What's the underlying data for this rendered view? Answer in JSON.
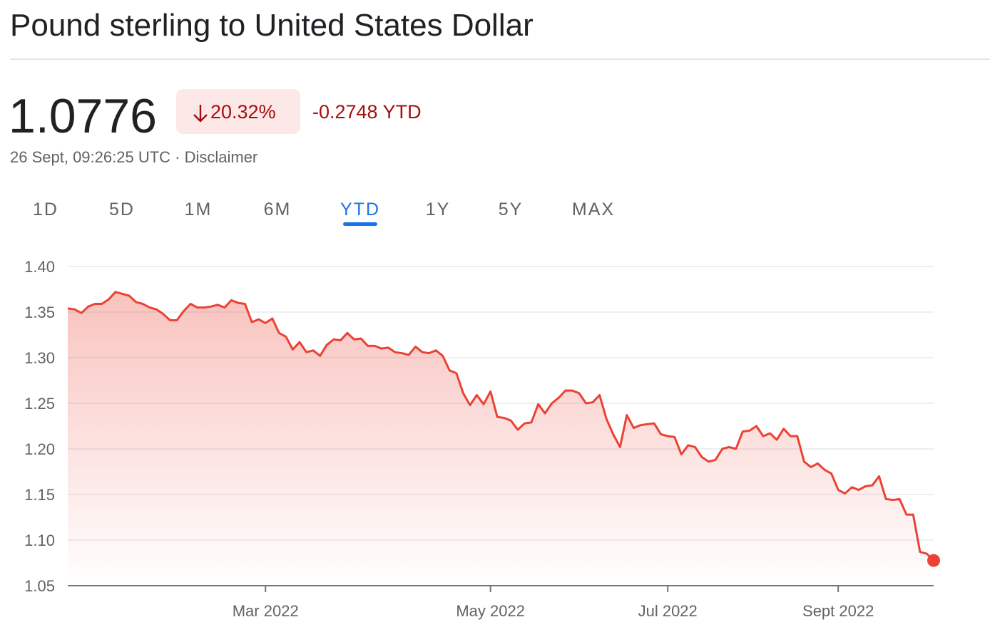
{
  "header": {
    "title": "Pound sterling to United States Dollar",
    "price": "1.0776",
    "change_percent": "20.32%",
    "change_ytd": "-0.2748 YTD",
    "status": "26 Sept, 09:26:25 UTC · Disclaimer"
  },
  "tabs": {
    "items": [
      "1D",
      "5D",
      "1M",
      "6M",
      "YTD",
      "1Y",
      "5Y",
      "MAX"
    ],
    "active": 4
  },
  "chart_data": {
    "type": "line",
    "color": "#ea4335",
    "grid": true,
    "categories": [
      null,
      null,
      null,
      null,
      null,
      null,
      null,
      null,
      null,
      null,
      null,
      null,
      null,
      null,
      null,
      null,
      null,
      null,
      null,
      null,
      null,
      null,
      null,
      null,
      null,
      null,
      null,
      null,
      null,
      "Mar 2022",
      null,
      null,
      null,
      null,
      null,
      null,
      null,
      null,
      null,
      null,
      null,
      null,
      null,
      null,
      null,
      null,
      null,
      null,
      null,
      null,
      null,
      null,
      null,
      null,
      null,
      null,
      null,
      null,
      null,
      null,
      null,
      null,
      "May 2022",
      null,
      null,
      null,
      null,
      null,
      null,
      null,
      null,
      null,
      null,
      null,
      null,
      null,
      null,
      null,
      null,
      null,
      null,
      null,
      null,
      null,
      null,
      null,
      null,
      null,
      "Jul 2022",
      null,
      null,
      null,
      null,
      null,
      null,
      null,
      null,
      null,
      null,
      null,
      null,
      null,
      null,
      null,
      null,
      null,
      null,
      null,
      null,
      null,
      null,
      null,
      null,
      "Sept 2022",
      null,
      null,
      null,
      null,
      null,
      null,
      null,
      null,
      null,
      null,
      null,
      null,
      null,
      null
    ],
    "values": [
      1.354,
      1.353,
      1.349,
      1.356,
      1.359,
      1.359,
      1.364,
      1.372,
      1.37,
      1.368,
      1.361,
      1.359,
      1.355,
      1.353,
      1.348,
      1.341,
      1.341,
      1.351,
      1.359,
      1.355,
      1.355,
      1.356,
      1.358,
      1.355,
      1.363,
      1.36,
      1.359,
      1.339,
      1.342,
      1.338,
      1.343,
      1.327,
      1.323,
      1.309,
      1.317,
      1.306,
      1.308,
      1.302,
      1.314,
      1.32,
      1.319,
      1.327,
      1.32,
      1.321,
      1.313,
      1.313,
      1.31,
      1.311,
      1.306,
      1.305,
      1.303,
      1.312,
      1.306,
      1.305,
      1.308,
      1.302,
      1.286,
      1.283,
      1.261,
      1.248,
      1.259,
      1.249,
      1.263,
      1.235,
      1.234,
      1.231,
      1.221,
      1.228,
      1.229,
      1.249,
      1.239,
      1.25,
      1.256,
      1.264,
      1.264,
      1.261,
      1.25,
      1.251,
      1.259,
      1.233,
      1.216,
      1.202,
      1.237,
      1.223,
      1.226,
      1.227,
      1.228,
      1.216,
      1.214,
      1.213,
      1.194,
      1.204,
      1.202,
      1.191,
      1.186,
      1.188,
      1.2,
      1.202,
      1.2,
      1.219,
      1.22,
      1.225,
      1.214,
      1.217,
      1.21,
      1.222,
      1.214,
      1.214,
      1.186,
      1.18,
      1.184,
      1.177,
      1.173,
      1.155,
      1.151,
      1.158,
      1.155,
      1.159,
      1.16,
      1.17,
      1.145,
      1.144,
      1.145,
      1.128,
      1.128,
      1.087,
      1.085,
      1.0776
    ],
    "ylim": [
      1.05,
      1.4
    ],
    "yticks": [
      1.05,
      {
        "value": 1.1,
        "label": "1.10"
      },
      1.15,
      {
        "value": 1.2,
        "label": "1.20"
      },
      1.25,
      {
        "value": 1.3,
        "label": "1.30"
      },
      1.35,
      {
        "value": 1.4,
        "label": "1.40"
      }
    ]
  }
}
